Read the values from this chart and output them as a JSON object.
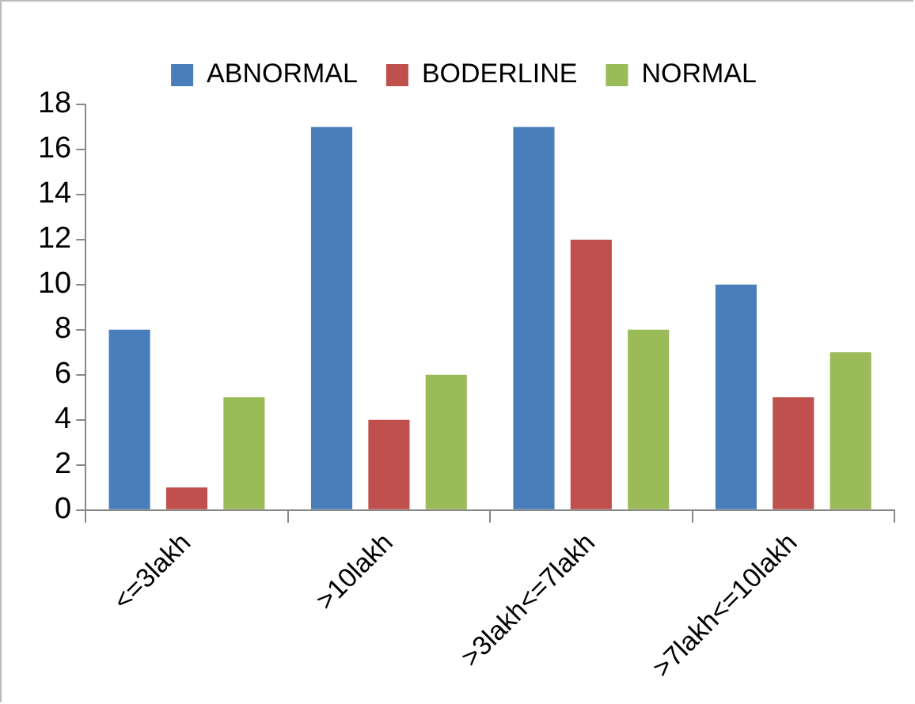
{
  "chart_data": {
    "type": "bar",
    "categories": [
      "<=3lakh",
      ">10lakh",
      ">3lakh<=7lakh",
      ">7lakh<=10lakh"
    ],
    "series": [
      {
        "name": "ABNORMAL",
        "color": "#4a7ebb",
        "values": [
          8,
          17,
          17,
          10
        ]
      },
      {
        "name": "BODERLINE",
        "color": "#c0504d",
        "values": [
          1,
          4,
          12,
          5
        ]
      },
      {
        "name": "NORMAL",
        "color": "#9bbb59",
        "values": [
          5,
          6,
          8,
          7
        ]
      }
    ],
    "ylim": [
      0,
      18
    ],
    "yticks": [
      0,
      2,
      4,
      6,
      8,
      10,
      12,
      14,
      16,
      18
    ],
    "grid": false,
    "legend": "top"
  }
}
